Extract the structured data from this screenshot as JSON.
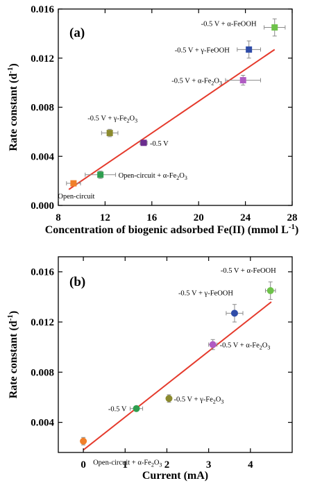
{
  "chart_data": [
    {
      "type": "scatter",
      "panel_label": "(a)",
      "xlabel": "Concentration of biogenic adsorbed Fe(II) (mmol L",
      "xlabel_sup": "-1",
      "xlabel_close": ")",
      "ylabel": "Rate constant (d",
      "ylabel_sup": "-1",
      "ylabel_close": ")",
      "xlim": [
        8,
        28
      ],
      "ylim": [
        0,
        0.016
      ],
      "x_ticks": [
        "8",
        "12",
        "16",
        "20",
        "24",
        "28"
      ],
      "y_ticks": [
        "0.000",
        "0.004",
        "0.008",
        "0.012",
        "0.016"
      ],
      "grid": false,
      "points": [
        {
          "x": 9.3,
          "y": 0.0018,
          "xerr": 0.6,
          "yerr": 0.0002,
          "color": "#f07f2a",
          "shape": "square",
          "label": "Open-circuit",
          "label_pos": "below"
        },
        {
          "x": 11.6,
          "y": 0.0025,
          "xerr": 1.3,
          "yerr": 0.0003,
          "color": "#2e9e4f",
          "shape": "square",
          "label": "Open-circuit + α-Fe",
          "label_sub": "2",
          "label_tail": "O",
          "label_sub2": "3",
          "label_pos": "right"
        },
        {
          "x": 12.4,
          "y": 0.0059,
          "xerr": 0.7,
          "yerr": 0.0003,
          "color": "#8b8a2e",
          "shape": "square",
          "label": "-0.5 V + γ-Fe",
          "label_sub": "2",
          "label_tail": "O",
          "label_sub2": "3",
          "label_pos": "above-left"
        },
        {
          "x": 15.3,
          "y": 0.0051,
          "xerr": 0.3,
          "yerr": 0.0002,
          "color": "#6b2c8f",
          "shape": "square",
          "label": "-0.5 V",
          "label_pos": "right"
        },
        {
          "x": 23.8,
          "y": 0.0102,
          "xerr": 1.5,
          "yerr": 0.0004,
          "color": "#b05bc3",
          "shape": "square",
          "label": "-0.5 V + α-Fe",
          "label_sub": "2",
          "label_tail": "O",
          "label_sub2": "3",
          "label_pos": "left"
        },
        {
          "x": 24.3,
          "y": 0.0127,
          "xerr": 1.0,
          "yerr": 0.0007,
          "color": "#2f4ca8",
          "shape": "square",
          "label": "-0.5 V + γ-FeOOH",
          "label_pos": "left"
        },
        {
          "x": 26.5,
          "y": 0.0145,
          "xerr": 0.9,
          "yerr": 0.0007,
          "color": "#6ec24a",
          "shape": "square",
          "label": "-0.5 V + α-FeOOH",
          "label_pos": "left"
        }
      ],
      "fit_line": {
        "x": [
          8.9,
          26.5
        ],
        "y": [
          0.0013,
          0.0127
        ],
        "color": "#e53a2c"
      }
    },
    {
      "type": "scatter",
      "panel_label": "(b)",
      "xlabel": "Current  (mA)",
      "ylabel": "Rate constant (d",
      "ylabel_sup": "-1",
      "ylabel_close": ")",
      "xlim": [
        -0.6,
        5.0
      ],
      "ylim": [
        0.0016,
        0.0172
      ],
      "x_ticks": [
        "0",
        "1",
        "2",
        "3",
        "4"
      ],
      "y_ticks": [
        "0.004",
        "0.008",
        "0.012",
        "0.016"
      ],
      "grid": false,
      "points": [
        {
          "x": 0.0,
          "y": 0.0025,
          "xerr": 0,
          "yerr": 0.0003,
          "color": "#f07f2a",
          "shape": "circle",
          "label": "Open-circuit + α-Fe",
          "label_sub": "2",
          "label_tail": "O",
          "label_sub2": "3",
          "label_pos": "below-right"
        },
        {
          "x": 1.27,
          "y": 0.0051,
          "xerr": 0.15,
          "yerr": 0.0001,
          "color": "#2e9e4f",
          "shape": "circle",
          "label": "-0.5 V",
          "label_pos": "left"
        },
        {
          "x": 2.05,
          "y": 0.0059,
          "xerr": 0.05,
          "yerr": 0.0003,
          "color": "#8b8a2e",
          "shape": "circle",
          "label": "-0.5 V + γ-Fe",
          "label_sub": "2",
          "label_tail": "O",
          "label_sub2": "3",
          "label_pos": "right"
        },
        {
          "x": 3.1,
          "y": 0.0102,
          "xerr": 0.1,
          "yerr": 0.0004,
          "color": "#b05bc3",
          "shape": "circle",
          "label": "-0.5 V + α-Fe",
          "label_sub": "2",
          "label_tail": "O",
          "label_sub2": "3",
          "label_pos": "right"
        },
        {
          "x": 3.62,
          "y": 0.0127,
          "xerr": 0.2,
          "yerr": 0.0007,
          "color": "#2f4ca8",
          "shape": "circle",
          "label": "-0.5 V + γ-FeOOH",
          "label_pos": "above-left"
        },
        {
          "x": 4.48,
          "y": 0.0145,
          "xerr": 0.12,
          "yerr": 0.0007,
          "color": "#6ec24a",
          "shape": "circle",
          "label": "-0.5 V + α-FeOOH",
          "label_pos": "above-left"
        }
      ],
      "fit_line": {
        "x": [
          0.0,
          4.5
        ],
        "y": [
          0.0018,
          0.0136
        ],
        "color": "#e53a2c"
      }
    }
  ]
}
